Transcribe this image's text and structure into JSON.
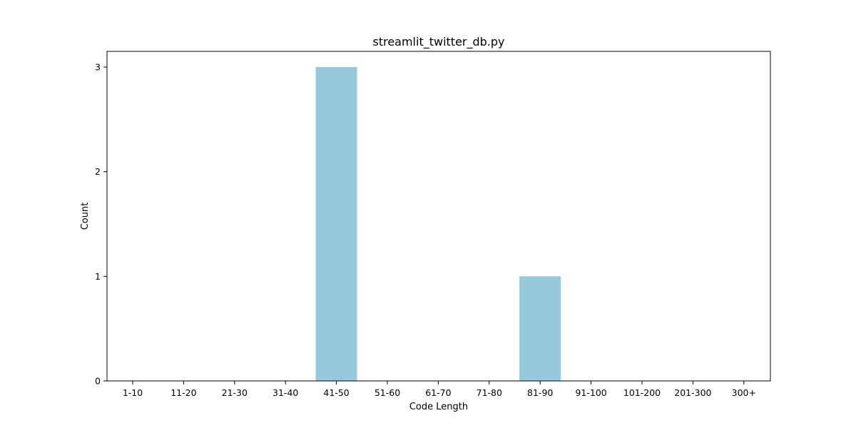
{
  "chart_data": {
    "type": "bar",
    "title": "streamlit_twitter_db.py",
    "xlabel": "Code Length",
    "ylabel": "Count",
    "categories": [
      "1-10",
      "11-20",
      "21-30",
      "31-40",
      "41-50",
      "51-60",
      "61-70",
      "71-80",
      "81-90",
      "91-100",
      "101-200",
      "201-300",
      "300+"
    ],
    "values": [
      0,
      0,
      0,
      0,
      3,
      0,
      0,
      0,
      1,
      0,
      0,
      0,
      0
    ],
    "ylim": [
      0,
      3.15
    ],
    "yticks": [
      0,
      1,
      2,
      3
    ],
    "bar_color": "#95c9dc",
    "grid": false,
    "legend": "none"
  }
}
